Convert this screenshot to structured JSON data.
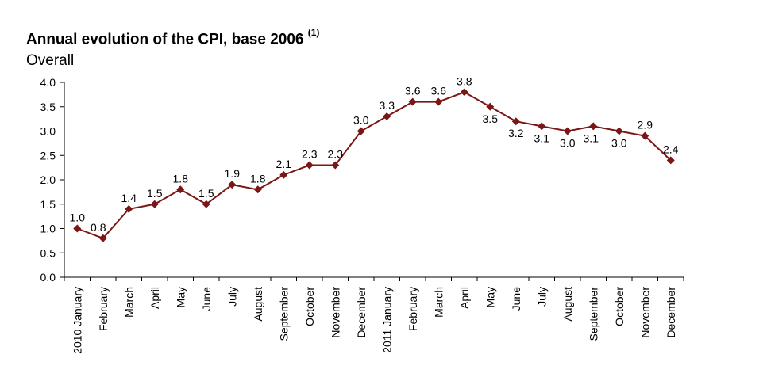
{
  "chart_data": {
    "type": "line",
    "title": "Annual evolution of the CPI, base 2006",
    "title_note": "(1)",
    "subtitle": "Overall",
    "categories": [
      "2010 January",
      "February",
      "March",
      "April",
      "May",
      "June",
      "July",
      "August",
      "September",
      "October",
      "November",
      "December",
      "2011 January",
      "February",
      "March",
      "April",
      "May",
      "June",
      "July",
      "August",
      "September",
      "October",
      "November",
      "December"
    ],
    "series": [
      {
        "values": [
          1.0,
          0.8,
          1.4,
          1.5,
          1.8,
          1.5,
          1.9,
          1.8,
          2.1,
          2.3,
          2.3,
          3.0,
          3.3,
          3.6,
          3.6,
          3.8,
          3.5,
          3.2,
          3.1,
          3.0,
          3.1,
          3.0,
          2.9,
          2.4
        ]
      }
    ],
    "ylim": [
      0,
      4
    ],
    "yticks": [
      "0.0",
      "0.5",
      "1.0",
      "1.5",
      "2.0",
      "2.5",
      "3.0",
      "3.5",
      "4.0"
    ],
    "grid": false,
    "line_color": "#7b1616",
    "marker": "diamond"
  }
}
